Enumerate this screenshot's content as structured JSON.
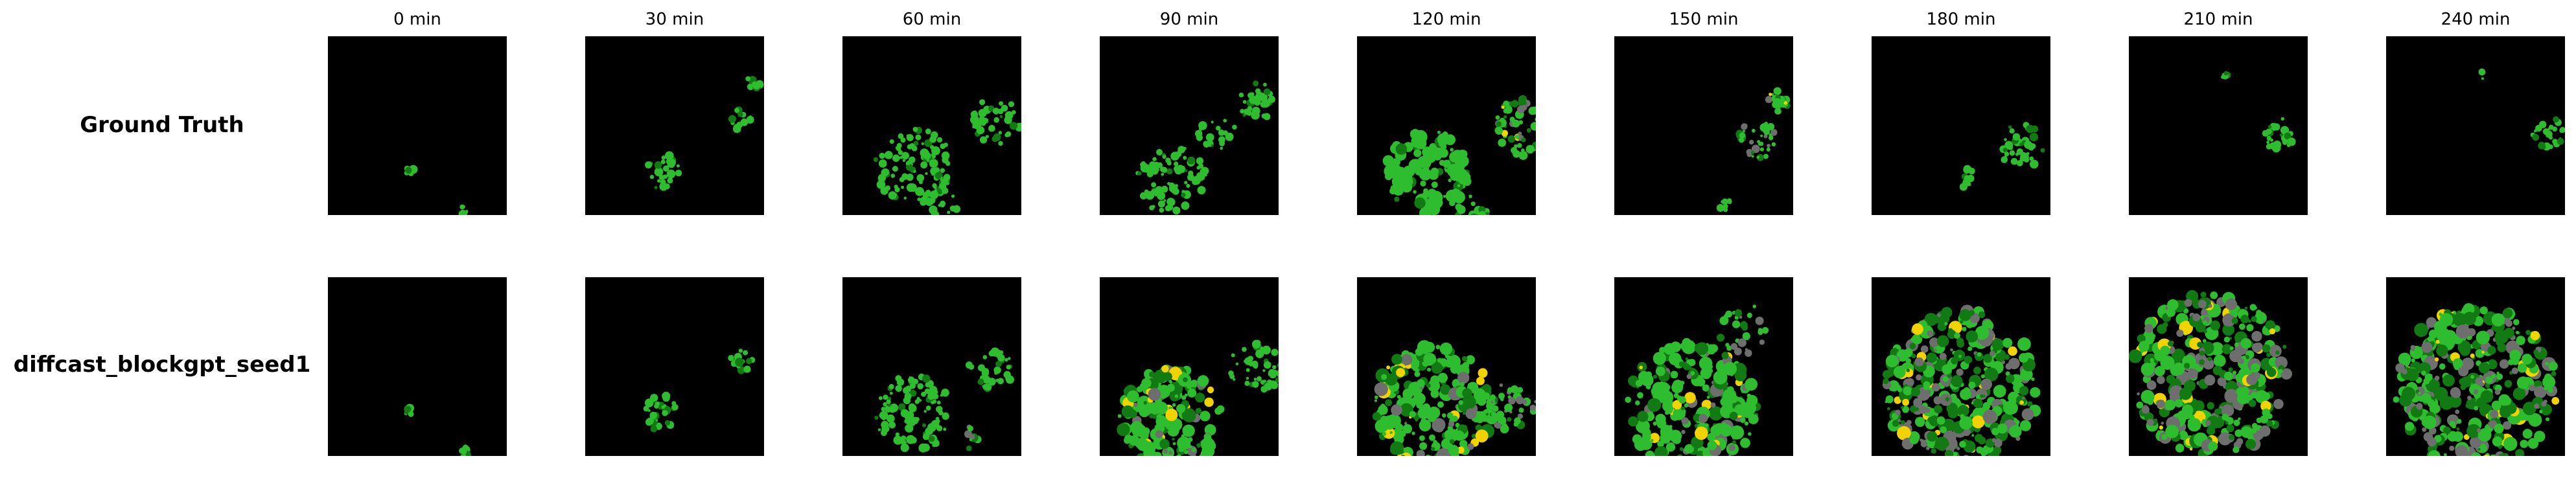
{
  "columns": [
    "0 min",
    "30 min",
    "60 min",
    "90 min",
    "120 min",
    "150 min",
    "180 min",
    "210 min",
    "240 min"
  ],
  "rows": [
    "Ground Truth",
    "diffcast_blockgpt_seed1"
  ],
  "colors": {
    "background": "#000000",
    "light_green": "#2ebd2e",
    "dark_green": "#127a12",
    "gray": "#6e6e6e",
    "yellow": "#f2d200"
  }
}
